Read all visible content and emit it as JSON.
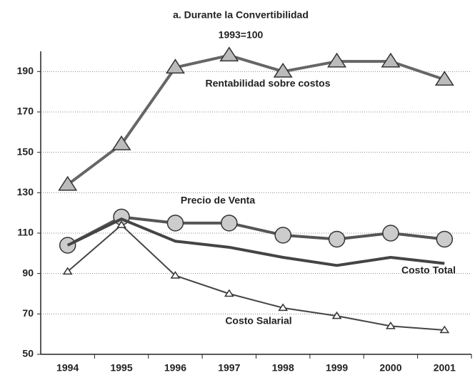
{
  "chart_data": {
    "type": "line",
    "title": "a. Durante la Convertibilidad",
    "subtitle": "1993=100",
    "categories": [
      "1994",
      "1995",
      "1996",
      "1997",
      "1998",
      "1999",
      "2000",
      "2001"
    ],
    "series": [
      {
        "name": "Rentabilidad sobre costos",
        "color": "#666666",
        "marker": "triangle",
        "marker_size": "large",
        "values": [
          134,
          154,
          192,
          198,
          190,
          195,
          195,
          186
        ]
      },
      {
        "name": "Precio de Venta",
        "color": "#555555",
        "marker": "circle",
        "marker_size": "large",
        "values": [
          104,
          118,
          115,
          115,
          109,
          107,
          110,
          107
        ]
      },
      {
        "name": "Costo Total",
        "color": "#444444",
        "marker": "none",
        "values": [
          104,
          117,
          106,
          103,
          98,
          94,
          98,
          95
        ]
      },
      {
        "name": "Costo Salarial",
        "color": "#444444",
        "marker": "triangle",
        "marker_size": "small",
        "values": [
          91,
          114,
          89,
          80,
          73,
          69,
          64,
          62
        ]
      }
    ],
    "ylim": [
      50,
      200
    ],
    "yticks": [
      50,
      70,
      90,
      110,
      130,
      150,
      170,
      190
    ],
    "grid": true
  }
}
